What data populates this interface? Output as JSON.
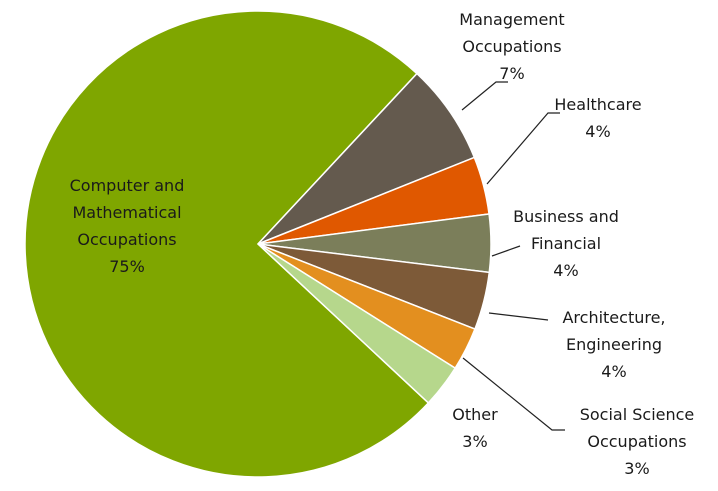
{
  "chart_data": {
    "type": "pie",
    "categories": [
      "Computer and Mathematical Occupations",
      "Management Occupations",
      "Healthcare",
      "Business and Financial",
      "Architecture, Engineering",
      "Social Science Occupations",
      "Other"
    ],
    "values": [
      75,
      7,
      4,
      4,
      4,
      3,
      3
    ],
    "value_labels": [
      "75%",
      "7%",
      "4%",
      "4%",
      "4%",
      "3%",
      "3%"
    ],
    "colors": [
      "#7fa600",
      "#645a4e",
      "#e05800",
      "#7b7e5a",
      "#7d5a38",
      "#e38f1f",
      "#b6d78c"
    ]
  }
}
